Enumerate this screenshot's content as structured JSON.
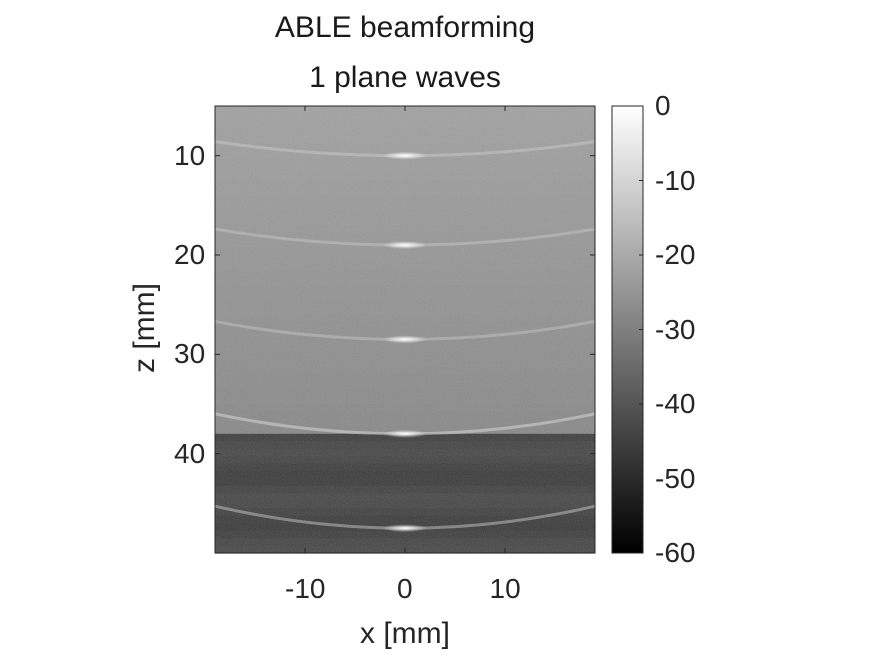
{
  "chart_data": {
    "type": "heatmap",
    "title": [
      "ABLE beamforming",
      "1 plane waves"
    ],
    "xlabel": "x [mm]",
    "ylabel": "z [mm]",
    "xlim": [
      -19,
      19
    ],
    "ylim": [
      5,
      50
    ],
    "y_reversed": true,
    "x_ticks": [
      -10,
      0,
      10
    ],
    "y_ticks": [
      10,
      20,
      30,
      40
    ],
    "colormap": "gray",
    "colorbar": {
      "range": [
        -60,
        0
      ],
      "ticks": [
        0,
        -10,
        -20,
        -30,
        -40,
        -50,
        -60
      ],
      "placement": "right"
    },
    "bright_reflectors": [
      {
        "x": 0,
        "z": 10
      },
      {
        "x": 0,
        "z": 19
      },
      {
        "x": 0,
        "z": 28.5
      },
      {
        "x": 0,
        "z": 38
      },
      {
        "x": 0,
        "z": 47.5
      }
    ],
    "background_level_db": {
      "near_field": -22,
      "deep_region": -45
    }
  }
}
